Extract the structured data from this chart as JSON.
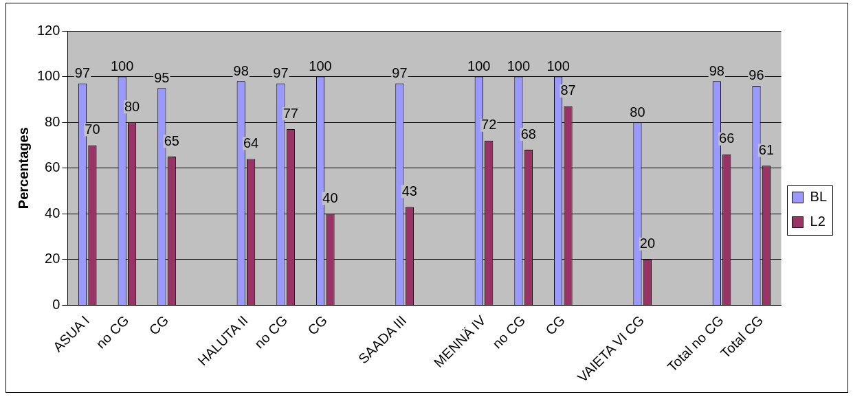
{
  "chart_data": {
    "type": "bar",
    "ylabel": "Percentages",
    "categories": [
      "ASUA I",
      "no CG",
      "CG",
      null,
      "HALUTA II",
      "no CG",
      "CG",
      null,
      "SAADA III",
      null,
      "MENNÄ IV",
      "no CG",
      "CG",
      null,
      "VAIETA VI CG",
      null,
      "Total no CG",
      "Total CG"
    ],
    "series": [
      {
        "name": "BL",
        "color": "#9999ff",
        "values": [
          97,
          100,
          95,
          null,
          98,
          97,
          100,
          null,
          97,
          null,
          100,
          100,
          100,
          null,
          80,
          null,
          98,
          96
        ]
      },
      {
        "name": "L2",
        "color": "#993366",
        "values": [
          70,
          80,
          65,
          null,
          64,
          77,
          40,
          null,
          43,
          null,
          72,
          68,
          87,
          null,
          20,
          null,
          66,
          61
        ]
      }
    ],
    "ylim": [
      0,
      120
    ],
    "yticks": [
      0,
      20,
      40,
      60,
      80,
      100,
      120
    ],
    "grid": "y",
    "legend": "right",
    "data_labels": true
  }
}
